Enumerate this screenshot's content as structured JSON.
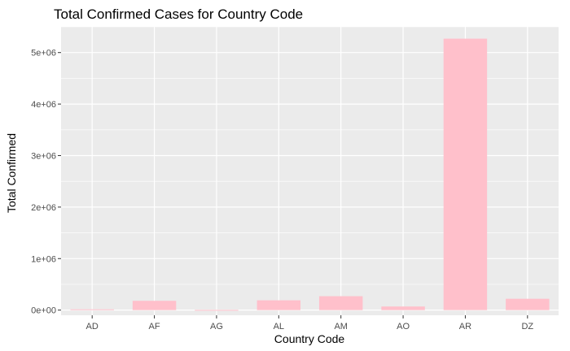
{
  "chart_data": {
    "type": "bar",
    "title": "Total Confirmed Cases for Country Code",
    "xlabel": "Country Code",
    "ylabel": "Total Confirmed",
    "categories": [
      "AD",
      "AF",
      "AG",
      "AL",
      "AM",
      "AO",
      "AR",
      "DZ"
    ],
    "values": [
      15000,
      180000,
      4000,
      190000,
      270000,
      70000,
      5270000,
      220000
    ],
    "ylim": [
      -100000,
      5500000
    ],
    "yticks": [
      0,
      1000000,
      2000000,
      3000000,
      4000000,
      5000000
    ],
    "ytick_labels": [
      "0e+00",
      "1e+06",
      "2e+06",
      "3e+06",
      "4e+06",
      "5e+06"
    ],
    "grid": true,
    "legend": "none",
    "colors": {
      "bar": "#ffc0cb",
      "panel": "#ebebeb",
      "grid_major": "#ffffff",
      "text": "#000000",
      "tick_text": "#4d4d4d"
    }
  }
}
